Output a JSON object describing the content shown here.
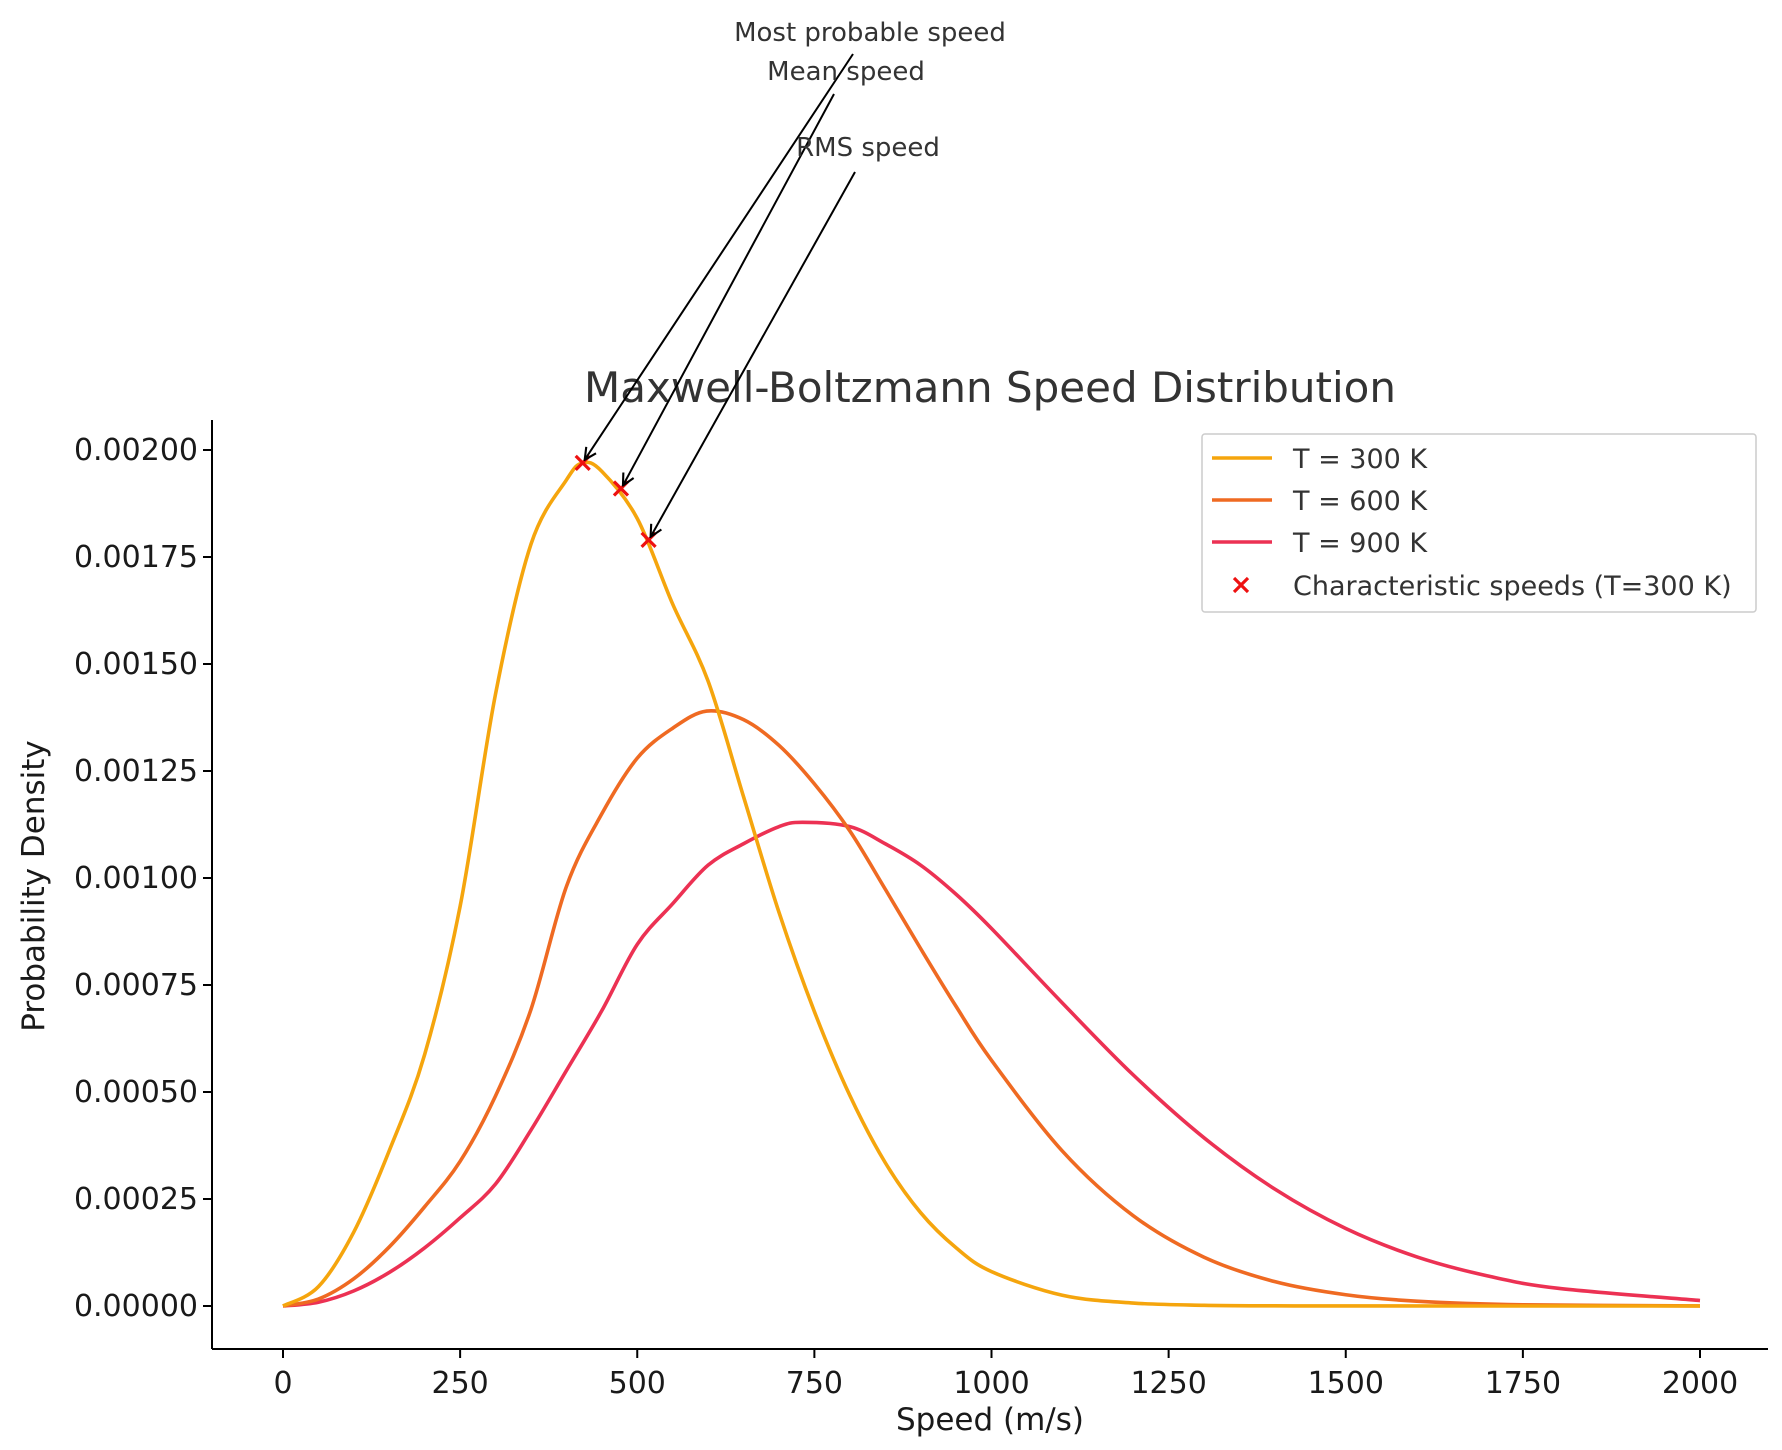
{
  "chart_data": {
    "type": "line",
    "title": "Maxwell-Boltzmann Speed Distribution",
    "xlabel": "Speed (m/s)",
    "ylabel": "Probability Density",
    "xlim": [
      -100,
      2100
    ],
    "ylim": [
      -0.0001,
      0.00207
    ],
    "x_ticks": [
      0,
      250,
      500,
      750,
      1000,
      1250,
      1500,
      1750,
      2000
    ],
    "x_tick_labels": [
      "0",
      "250",
      "500",
      "750",
      "1000",
      "1250",
      "1500",
      "1750",
      "2000"
    ],
    "y_ticks": [
      0,
      0.00025,
      0.0005,
      0.00075,
      0.001,
      0.00125,
      0.0015,
      0.00175,
      0.002
    ],
    "y_tick_labels": [
      "0.00000",
      "0.00025",
      "0.00050",
      "0.00075",
      "0.00100",
      "0.00125",
      "0.00150",
      "0.00175",
      "0.00200"
    ],
    "grid": false,
    "legend_position": "top-right",
    "series": [
      {
        "name": "T = 300 K",
        "color": "#f5a50d",
        "x": [
          0,
          50,
          100,
          150,
          200,
          250,
          300,
          350,
          400,
          423,
          450,
          500,
          550,
          600,
          650,
          700,
          750,
          800,
          850,
          900,
          950,
          1000,
          1100,
          1200,
          1300,
          1400,
          1500,
          1750,
          2000
        ],
        "y": [
          0,
          4.52e-05,
          0.000173,
          0.000363,
          0.000588,
          0.000934,
          0.00143,
          0.00178,
          0.00193,
          0.00197,
          0.00195,
          0.00184,
          0.00164,
          0.00146,
          0.00119,
          0.00092,
          0.000688,
          0.000492,
          0.000335,
          0.000218,
          0.000136,
          8.04e-05,
          2.52e-05,
          6.9e-06,
          1.7e-06,
          4e-07,
          1e-07,
          0,
          0
        ]
      },
      {
        "name": "T = 600 K",
        "color": "#ef6a22",
        "x": [
          0,
          50,
          100,
          150,
          200,
          250,
          300,
          350,
          400,
          450,
          500,
          550,
          598,
          650,
          700,
          750,
          800,
          850,
          900,
          950,
          1000,
          1100,
          1200,
          1300,
          1400,
          1500,
          1600,
          1750,
          2000
        ],
        "y": [
          0,
          1.63e-05,
          6.38e-05,
          0.000138,
          0.000232,
          0.000338,
          0.000491,
          0.000693,
          0.00098,
          0.00115,
          0.00128,
          0.00135,
          0.00139,
          0.00137,
          0.00131,
          0.00122,
          0.00111,
          0.000974,
          0.000835,
          0.0007,
          0.000574,
          0.000362,
          0.000211,
          0.000114,
          5.69e-05,
          2.63e-05,
          1.13e-05,
          2.9e-06,
          2e-07
        ]
      },
      {
        "name": "T = 900 K",
        "color": "#ec3153",
        "x": [
          0,
          50,
          100,
          150,
          200,
          250,
          300,
          350,
          400,
          450,
          500,
          550,
          600,
          650,
          700,
          733,
          800,
          850,
          900,
          950,
          1000,
          1100,
          1200,
          1300,
          1400,
          1500,
          1600,
          1700,
          1800,
          2000
        ],
        "y": [
          0,
          8.9e-06,
          3.54e-05,
          7.84e-05,
          0.000136,
          0.000206,
          0.000285,
          0.000411,
          0.00055,
          0.00069,
          0.000845,
          0.00094,
          0.00103,
          0.00108,
          0.00112,
          0.00113,
          0.00112,
          0.00108,
          0.00103,
          0.000962,
          0.000882,
          0.000708,
          0.00054,
          0.000393,
          0.000273,
          0.000181,
          0.000115,
          7.04e-05,
          4.13e-05,
          1.28e-05
        ]
      }
    ],
    "markers": {
      "name": "Characteristic speeds (T=300 K)",
      "color": "#ee1111",
      "x": [
        423,
        477,
        516
      ],
      "y": [
        0.00197,
        0.00191,
        0.00179
      ]
    },
    "annotations": [
      {
        "text": "Most probable speed",
        "x": 423,
        "y": 0.00197
      },
      {
        "text": "Mean speed",
        "x": 477,
        "y": 0.00191
      },
      {
        "text": "RMS speed",
        "x": 516,
        "y": 0.00179
      }
    ]
  }
}
